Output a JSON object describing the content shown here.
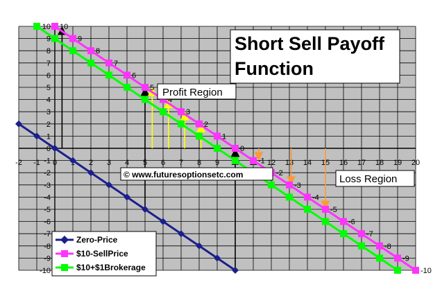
{
  "chart_data": {
    "type": "line",
    "title_lines": [
      "Short Sell Payoff",
      "Function"
    ],
    "xlabel": "",
    "ylabel": "",
    "xlim": [
      -2,
      20
    ],
    "ylim": [
      -10,
      10
    ],
    "x_ticks": [
      -2,
      -1,
      0,
      1,
      2,
      3,
      4,
      5,
      6,
      7,
      8,
      9,
      10,
      11,
      12,
      13,
      14,
      15,
      16,
      17,
      18,
      19,
      20
    ],
    "y_ticks": [
      10,
      9,
      8,
      7,
      6,
      5,
      4,
      3,
      2,
      1,
      0,
      -1,
      -2,
      -3,
      -4,
      -5,
      -6,
      -7,
      -8,
      -9,
      -10
    ],
    "grid": true,
    "legend_position": "bottom-left",
    "series": [
      {
        "name": "Zero-Price",
        "color": "#1b1f8a",
        "marker": "diamond",
        "x": [
          -2,
          -1,
          0,
          1,
          2,
          3,
          4,
          5,
          6,
          7,
          8,
          9,
          10
        ],
        "y": [
          2,
          1,
          0,
          -1,
          -2,
          -3,
          -4,
          -5,
          -6,
          -7,
          -8,
          -9,
          -10
        ],
        "data_labels": []
      },
      {
        "name": "$10-SellPrice",
        "color": "#ff33ff",
        "marker": "square",
        "x": [
          0,
          1,
          2,
          3,
          4,
          5,
          6,
          7,
          8,
          9,
          10,
          11,
          12,
          13,
          14,
          15,
          16,
          17,
          18,
          19,
          20
        ],
        "y": [
          10,
          9,
          8,
          7,
          6,
          5,
          4,
          3,
          2,
          1,
          0,
          -1,
          -2,
          -3,
          -4,
          -5,
          -6,
          -7,
          -8,
          -9,
          -10
        ],
        "data_labels": [
          "10",
          "9",
          "8",
          "7",
          "6",
          "5",
          "4",
          "3",
          "2",
          "1",
          "0",
          "-1",
          "-2",
          "-3",
          "-4",
          "-5",
          "-6",
          "-7",
          "-8",
          "-9",
          "-10"
        ]
      },
      {
        "name": "$10+$1Brokerage",
        "color": "#00ff00",
        "marker": "square",
        "x": [
          -1,
          0,
          1,
          2,
          3,
          4,
          5,
          6,
          7,
          8,
          9,
          10,
          11,
          12,
          13,
          14,
          15,
          16,
          17,
          18,
          19
        ],
        "y": [
          10,
          9,
          8,
          7,
          6,
          5,
          4,
          3,
          2,
          1,
          0,
          -1,
          -2,
          -3,
          -4,
          -5,
          -6,
          -7,
          -8,
          -9,
          -10
        ],
        "data_labels": []
      }
    ],
    "annotations": {
      "profit_region": "Profit Region",
      "loss_region": "Loss Region",
      "website": "© www.futuresoptionsetc.com"
    },
    "black_arrows": [
      {
        "x": 0.4,
        "from": 0,
        "to": 10
      },
      {
        "x": 5,
        "from": -5,
        "to": 5
      },
      {
        "x": 10,
        "from": -10,
        "to": 0
      }
    ],
    "yellow_arrows": [
      {
        "x": 5.4,
        "from": 0,
        "to": 5
      },
      {
        "x": 6.3,
        "from": 0,
        "to": 4
      },
      {
        "x": 7.2,
        "from": 0,
        "to": 3
      },
      {
        "x": 8.1,
        "from": 0,
        "to": 2
      }
    ],
    "orange_arrows": [
      {
        "x": 11.3,
        "from": 0,
        "to": -1
      },
      {
        "x": 13.1,
        "from": 0,
        "to": -3
      },
      {
        "x": 15.0,
        "from": 0,
        "to": -5
      }
    ]
  }
}
